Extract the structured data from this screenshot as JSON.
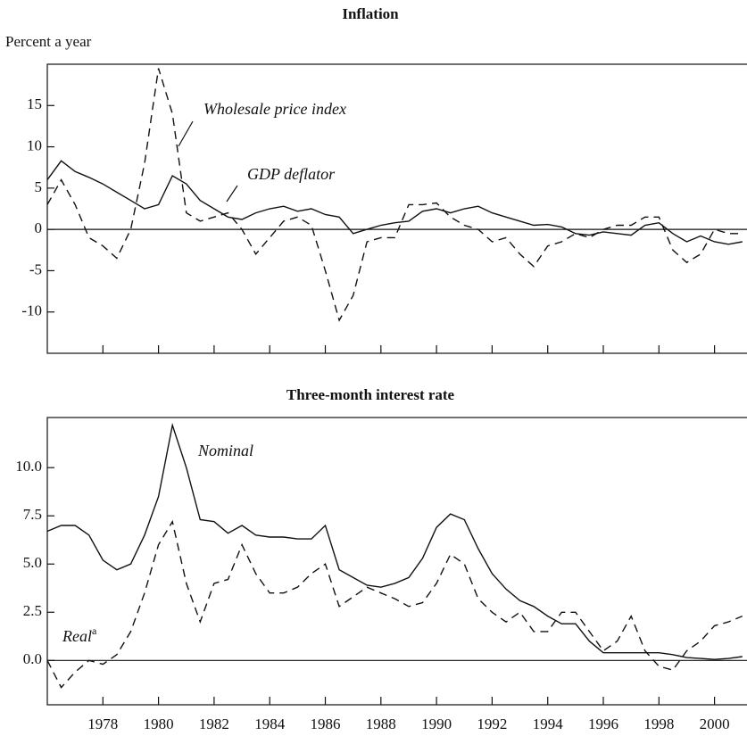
{
  "chart_data": [
    {
      "type": "line",
      "title": "Inflation",
      "y_label": "Percent a year",
      "x": [
        1976,
        1976.5,
        1977,
        1977.5,
        1978,
        1978.5,
        1979,
        1979.5,
        1980,
        1980.5,
        1981,
        1981.5,
        1982,
        1982.5,
        1983,
        1983.5,
        1984,
        1984.5,
        1985,
        1985.5,
        1986,
        1986.5,
        1987,
        1987.5,
        1988,
        1988.5,
        1989,
        1989.5,
        1990,
        1990.5,
        1991,
        1991.5,
        1992,
        1992.5,
        1993,
        1993.5,
        1994,
        1994.5,
        1995,
        1995.5,
        1996,
        1996.5,
        1997,
        1997.5,
        1998,
        1998.5,
        1999,
        1999.5,
        2000,
        2000.5,
        2001
      ],
      "series": [
        {
          "name": "Wholesale price index",
          "color": "#111",
          "line_style": "dashed",
          "values": [
            3,
            6,
            3,
            -1,
            -2,
            -3.5,
            0,
            8,
            19.5,
            14,
            2,
            1,
            1.5,
            2,
            0,
            -3,
            -1,
            1,
            1.5,
            0.5,
            -5,
            -11,
            -8,
            -1.5,
            -1,
            -1,
            3,
            3,
            3.2,
            1.5,
            0.5,
            0,
            -1.5,
            -1,
            -3,
            -4.5,
            -2,
            -1.5,
            -0.5,
            -1,
            0,
            0.5,
            0.5,
            1.5,
            1.5,
            -2.5,
            -4,
            -3,
            0,
            -0.5,
            -0.5
          ]
        },
        {
          "name": "GDP deflator",
          "color": "#111",
          "line_style": "solid",
          "values": [
            6,
            8.3,
            7,
            6.3,
            5.5,
            4.5,
            3.5,
            2.5,
            3,
            6.5,
            5.5,
            3.5,
            2.5,
            1.5,
            1.2,
            2,
            2.5,
            2.8,
            2.2,
            2.5,
            1.8,
            1.5,
            -0.5,
            0,
            0.5,
            0.8,
            1,
            2.2,
            2.5,
            2,
            2.5,
            2.8,
            2,
            1.5,
            1,
            0.5,
            0.6,
            0.3,
            -0.5,
            -0.7,
            -0.3,
            -0.5,
            -0.7,
            0.5,
            0.8,
            -0.5,
            -1.5,
            -0.8,
            -1.5,
            -1.8,
            -1.5
          ]
        }
      ],
      "xlim": [
        1976,
        2001.2
      ],
      "xticks": [
        1978,
        1980,
        1982,
        1984,
        1986,
        1988,
        1990,
        1992,
        1994,
        1996,
        1998,
        2000
      ],
      "ylim": [
        -15,
        20
      ],
      "yticks": [
        -10,
        -5,
        0,
        5,
        10,
        15
      ]
    },
    {
      "type": "line",
      "title": "Three-month interest rate",
      "x": [
        1976,
        1976.5,
        1977,
        1977.5,
        1978,
        1978.5,
        1979,
        1979.5,
        1980,
        1980.5,
        1981,
        1981.5,
        1982,
        1982.5,
        1983,
        1983.5,
        1984,
        1984.5,
        1985,
        1985.5,
        1986,
        1986.5,
        1987,
        1987.5,
        1988,
        1988.5,
        1989,
        1989.5,
        1990,
        1990.5,
        1991,
        1991.5,
        1992,
        1992.5,
        1993,
        1993.5,
        1994,
        1994.5,
        1995,
        1995.5,
        1996,
        1996.5,
        1997,
        1997.5,
        1998,
        1998.5,
        1999,
        1999.5,
        2000,
        2000.5,
        2001
      ],
      "series": [
        {
          "name": "Nominal",
          "color": "#111",
          "line_style": "solid",
          "values": [
            6.7,
            7,
            7,
            6.5,
            5.2,
            4.7,
            5,
            6.5,
            8.5,
            12.2,
            10,
            7.3,
            7.2,
            6.6,
            7,
            6.5,
            6.4,
            6.4,
            6.3,
            6.3,
            7,
            4.7,
            4.3,
            3.9,
            3.8,
            4,
            4.3,
            5.3,
            6.9,
            7.6,
            7.3,
            5.8,
            4.5,
            3.7,
            3.1,
            2.8,
            2.3,
            1.9,
            1.9,
            1,
            0.4,
            0.4,
            0.4,
            0.4,
            0.4,
            0.3,
            0.15,
            0.1,
            0.05,
            0.1,
            0.2
          ]
        },
        {
          "name": "Real",
          "color": "#111",
          "line_style": "dashed",
          "values": [
            0,
            -1.4,
            -0.6,
            0,
            -0.2,
            0.3,
            1.5,
            3.5,
            6,
            7.2,
            4,
            2,
            4,
            4.2,
            6,
            4.5,
            3.5,
            3.5,
            3.8,
            4.5,
            5,
            2.8,
            3.3,
            3.8,
            3.5,
            3.2,
            2.8,
            3,
            4,
            5.5,
            5,
            3.2,
            2.5,
            2,
            2.5,
            1.5,
            1.5,
            2.5,
            2.5,
            1.5,
            0.5,
            1,
            2.3,
            0.5,
            -0.3,
            -0.5,
            0.5,
            1,
            1.8,
            2,
            2.3
          ]
        }
      ],
      "footnote_marker": "a",
      "xlim": [
        1976,
        2001.2
      ],
      "xticks": [
        1978,
        1980,
        1982,
        1984,
        1986,
        1988,
        1990,
        1992,
        1994,
        1996,
        1998,
        2000
      ],
      "ylim": [
        -2.3,
        12.6
      ],
      "yticks": [
        {
          "value": 0,
          "label": "0.0"
        },
        2.5,
        {
          "value": 5,
          "label": "5.0"
        },
        7.5,
        {
          "value": 10,
          "label": "10.0"
        }
      ]
    }
  ]
}
